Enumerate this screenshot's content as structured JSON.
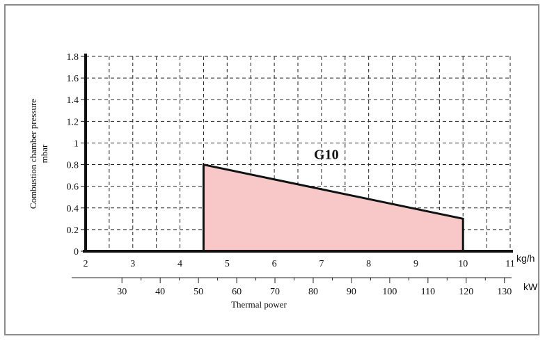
{
  "chart_data": {
    "type": "area",
    "ylabel_line1": "Combustion chamber pressure",
    "ylabel_line2": "mbar",
    "xlabel": "Thermal power",
    "x_unit_primary": "kg/h",
    "x_unit_secondary": "kW",
    "xlim": [
      2,
      11
    ],
    "ylim": [
      0,
      1.8
    ],
    "x_ticks": [
      "2",
      "3",
      "4",
      "5",
      "6",
      "7",
      "8",
      "9",
      "10",
      "11"
    ],
    "y_ticks": [
      "0",
      "0.2",
      "0.4",
      "0.6",
      "0.8",
      "1",
      "1.2",
      "1.4",
      "1.6",
      "1.8"
    ],
    "kw_ticks": [
      "30",
      "40",
      "50",
      "60",
      "70",
      "80",
      "90",
      "100",
      "110",
      "120",
      "130"
    ],
    "kw_range_for_kgh": [
      [
        2,
        20.5
      ],
      [
        11,
        131.5
      ]
    ],
    "grid": true,
    "series": [
      {
        "name": "G10",
        "x": [
          4.5,
          4.5,
          10,
          10
        ],
        "y": [
          0,
          0.8,
          0.3,
          0
        ],
        "fill": "#f8c8c8",
        "stroke": "#111111"
      }
    ]
  }
}
